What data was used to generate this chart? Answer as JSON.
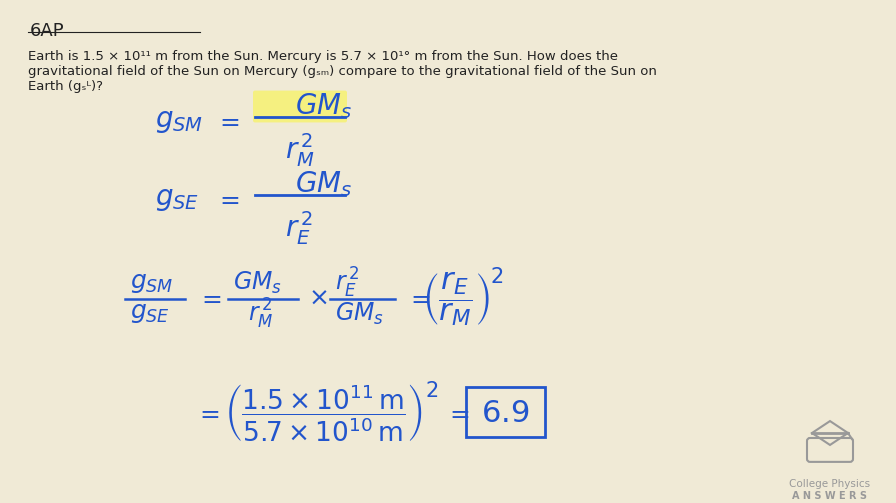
{
  "background_color": "#f0ead6",
  "title_text": "6AP",
  "problem_text_line1": "Earth is 1.5 × 10¹¹ m from the Sun. Mercury is 5.7 × 10¹° m from the Sun. How does the",
  "problem_text_line2": "gravitational field of the Sun on Mercury (gₛₘ) compare to the gravitational field of the Sun on",
  "problem_text_line3": "Earth (gₛᴸ)?",
  "eq1_lhs": "$g_{SM}$",
  "eq1_rhs": "$\\dfrac{GM_s}{r_M^{\\,2}}$",
  "eq2_lhs": "$g_{SE}$",
  "eq2_rhs": "$\\dfrac{GM_s}{r_E^{\\,2}}$",
  "eq3": "$\\dfrac{g_{SM}}{g_{SE}} = \\dfrac{GM_s}{r_M^{\\,2}} \\times \\dfrac{r_E^{\\,2}}{GM_s} = \\left(\\dfrac{r_E}{r_M}\\right)^{\\!2}$",
  "eq4": "$= \\left(\\dfrac{1.5\\times10^{11}\\,\\mathrm{m}}{5.7\\times10^{10}\\,\\mathrm{m}}\\right)^{\\!2} = $",
  "answer": "6.9",
  "highlight_color": "#f5f080",
  "blue_color": "#2255cc",
  "text_color": "#222222",
  "logo_color": "#999999"
}
